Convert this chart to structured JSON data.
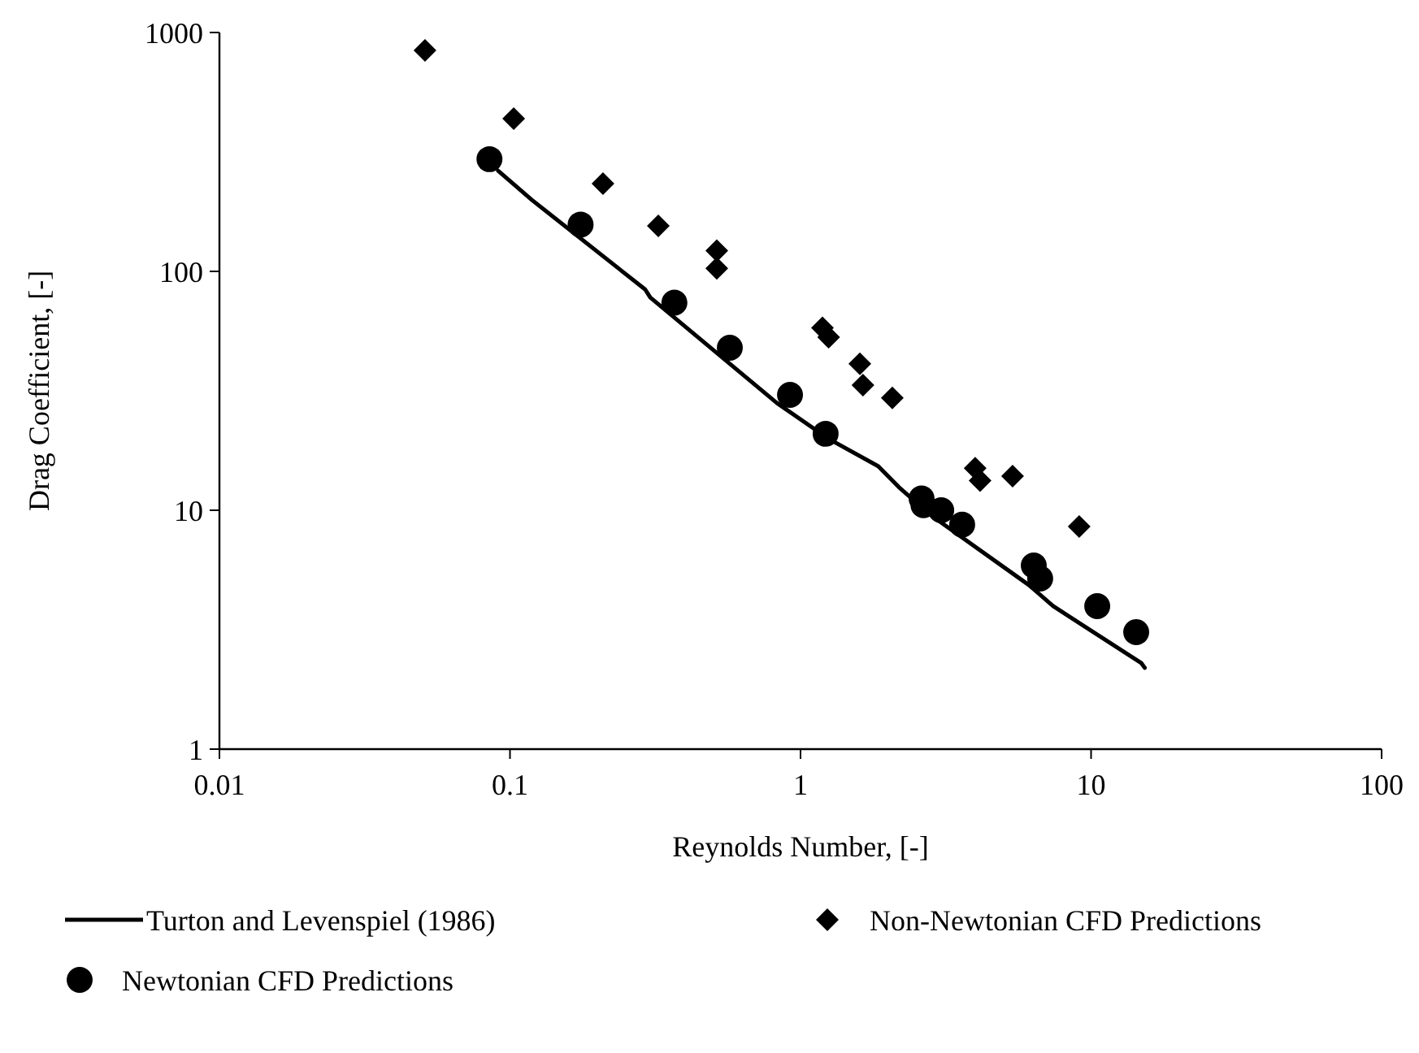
{
  "chart_data": {
    "type": "scatter",
    "xlabel": "Reynolds Number, [-]",
    "ylabel": "Drag Coefficient, [-]",
    "log": "xy",
    "xlim": [
      0.01,
      100
    ],
    "ylim": [
      1,
      1000
    ],
    "xticks": [
      0.01,
      0.1,
      1,
      10,
      100
    ],
    "yticks": [
      1,
      10,
      100,
      1000
    ],
    "grid": false,
    "legend": "bottom",
    "series": [
      {
        "name": "Turton and Levenspiel (1986)",
        "type": "line",
        "color": "#000000",
        "marker": "none",
        "line_style": "solid",
        "x": [
          0.091,
          0.119,
          0.292,
          0.304,
          0.83,
          1.25,
          1.85,
          2.18,
          2.82,
          6.1,
          7.4,
          14.9,
          15.3
        ],
        "values": [
          264,
          199,
          84,
          77.8,
          28.1,
          19.9,
          15.3,
          12.5,
          9.5,
          4.87,
          3.97,
          2.29,
          2.19
        ]
      },
      {
        "name": "Non-Newtonian CFD Predictions",
        "color": "#000000",
        "marker": "diamond",
        "x": [
          0.051,
          0.103,
          0.209,
          0.324,
          0.515,
          0.515,
          1.19,
          1.25,
          1.6,
          1.64,
          2.07,
          3.99,
          4.15,
          5.37,
          9.1
        ],
        "values": [
          841,
          436,
          233,
          155,
          122,
          103,
          58,
          53,
          41,
          33.4,
          29.5,
          15,
          13.3,
          13.9,
          8.55
        ]
      },
      {
        "name": "Newtonian CFD Predictions",
        "color": "#000000",
        "marker": "circle",
        "x": [
          0.085,
          0.175,
          0.368,
          0.571,
          0.92,
          1.22,
          2.61,
          2.65,
          3.05,
          3.6,
          6.35,
          6.68,
          10.5,
          14.3
        ],
        "values": [
          295,
          157,
          74,
          47.9,
          30.4,
          20.9,
          11.2,
          10.5,
          10,
          8.7,
          5.87,
          5.18,
          3.97,
          3.09
        ]
      }
    ]
  }
}
